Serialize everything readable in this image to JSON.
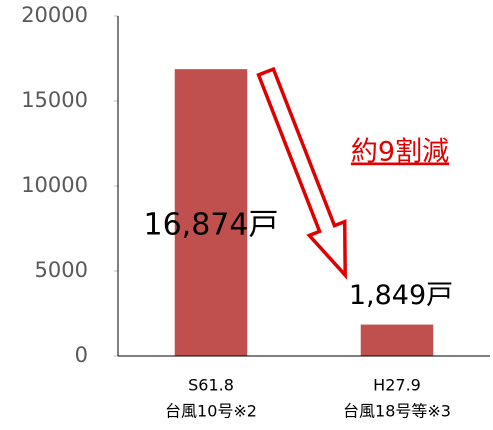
{
  "chart_data": {
    "type": "bar",
    "categories": [
      [
        "S61.8",
        "台風10号※2"
      ],
      [
        "H27.9",
        "台風18号等※3"
      ]
    ],
    "values": [
      16874,
      1849
    ],
    "value_labels": [
      "16,874戸",
      "1,849戸"
    ],
    "color": "#c0504d",
    "ylim": [
      0,
      20000
    ],
    "yticks": [
      0,
      5000,
      10000,
      15000,
      20000
    ],
    "annotation": "約9割減"
  }
}
